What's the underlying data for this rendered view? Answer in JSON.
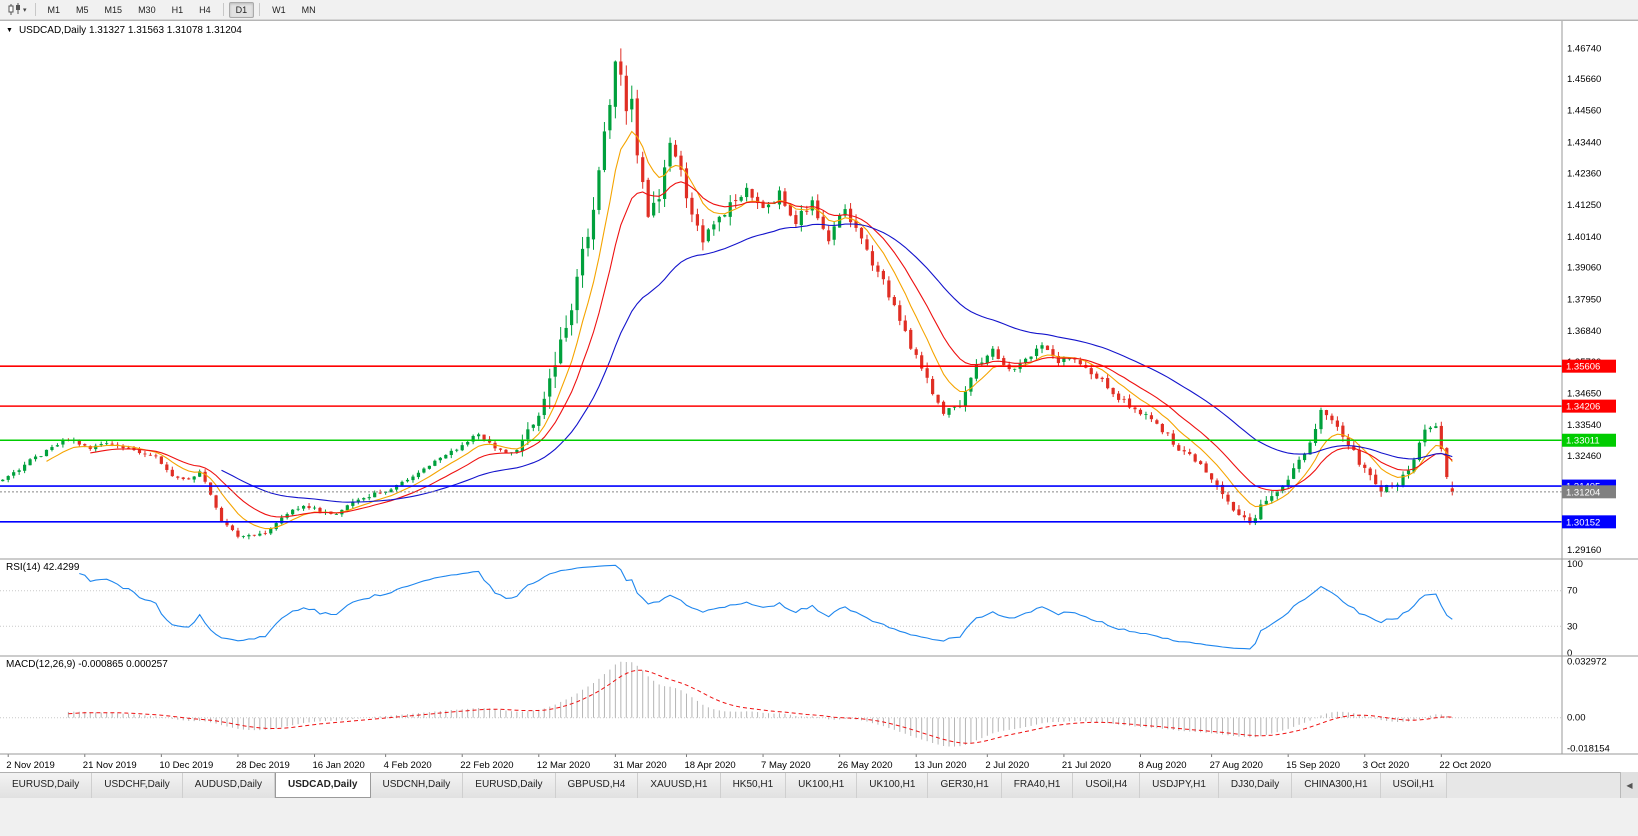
{
  "icons": {
    "symbol_dropdown": "▼",
    "dropdown_caret": "▾",
    "tab_scroll_left": "◀"
  },
  "toolbar": {
    "timeframes": [
      "M1",
      "M5",
      "M15",
      "M30",
      "H1",
      "H4",
      "D1",
      "W1",
      "MN"
    ],
    "active_timeframe": "D1"
  },
  "chart": {
    "title_text": "USDCAD,Daily 1.31327 1.31563 1.31078 1.31204"
  },
  "indicators": {
    "rsi_label": "RSI(14) 42.4299",
    "macd_label": "MACD(12,26,9) -0.000865 0.000257"
  },
  "tabs": {
    "active_index": 3,
    "items": [
      "EURUSD,Daily",
      "USDCHF,Daily",
      "AUDUSD,Daily",
      "USDCAD,Daily",
      "USDCNH,Daily",
      "EURUSD,Daily",
      "GBPUSD,H4",
      "XAUUSD,H1",
      "HK50,H1",
      "UK100,H1",
      "UK100,H1",
      "GER30,H1",
      "FRA40,H1",
      "USOil,H4",
      "USDJPY,H1",
      "DJ30,Daily",
      "CHINA300,H1",
      "USOil,H1"
    ]
  },
  "chart_data": {
    "type": "candlestick",
    "symbol": "USDCAD",
    "timeframe": "Daily",
    "last_quote": {
      "open": 1.31327,
      "high": 1.31563,
      "low": 1.31078,
      "close": 1.31204
    },
    "price_range": [
      1.2885,
      1.477
    ],
    "extremes": {
      "high": 1.4674,
      "low": 1.2951
    },
    "y_ticks": [
      1.4674,
      1.4566,
      1.4456,
      1.4344,
      1.4236,
      1.4125,
      1.4014,
      1.3906,
      1.3795,
      1.3684,
      1.3576,
      1.3465,
      1.3354,
      1.3246,
      1.3135,
      1.3024,
      1.2916
    ],
    "bars_total": 266,
    "candle_up_color": "#00a03c",
    "candle_down_color": "#e02e24",
    "price_path_anchors": [
      [
        0,
        1.316
      ],
      [
        4,
        1.3215
      ],
      [
        8,
        1.3265
      ],
      [
        12,
        1.3305
      ],
      [
        16,
        1.3275
      ],
      [
        20,
        1.3292
      ],
      [
        24,
        1.3268
      ],
      [
        28,
        1.3238
      ],
      [
        31,
        1.318
      ],
      [
        34,
        1.3168
      ],
      [
        36,
        1.3192
      ],
      [
        38,
        1.311
      ],
      [
        40,
        1.302
      ],
      [
        43,
        1.2968
      ],
      [
        46,
        1.296
      ],
      [
        49,
        1.2988
      ],
      [
        52,
        1.304
      ],
      [
        55,
        1.3078
      ],
      [
        58,
        1.3052
      ],
      [
        61,
        1.3038
      ],
      [
        64,
        1.3082
      ],
      [
        68,
        1.3112
      ],
      [
        72,
        1.3142
      ],
      [
        76,
        1.3186
      ],
      [
        80,
        1.3236
      ],
      [
        84,
        1.3288
      ],
      [
        87,
        1.3322
      ],
      [
        90,
        1.3278
      ],
      [
        93,
        1.3252
      ],
      [
        95,
        1.3292
      ],
      [
        97,
        1.3362
      ],
      [
        99,
        1.3442
      ],
      [
        101,
        1.3562
      ],
      [
        103,
        1.3702
      ],
      [
        105,
        1.3872
      ],
      [
        107,
        1.4012
      ],
      [
        109,
        1.4232
      ],
      [
        111,
        1.4482
      ],
      [
        112,
        1.46
      ],
      [
        113,
        1.456
      ],
      [
        114,
        1.4455
      ],
      [
        115,
        1.4492
      ],
      [
        116,
        1.4302
      ],
      [
        118,
        1.4062
      ],
      [
        120,
        1.4162
      ],
      [
        122,
        1.4332
      ],
      [
        124,
        1.4242
      ],
      [
        126,
        1.4072
      ],
      [
        128,
        1.3992
      ],
      [
        130,
        1.4062
      ],
      [
        133,
        1.4132
      ],
      [
        136,
        1.4192
      ],
      [
        139,
        1.4102
      ],
      [
        142,
        1.4162
      ],
      [
        145,
        1.4072
      ],
      [
        148,
        1.4132
      ],
      [
        151,
        1.4012
      ],
      [
        154,
        1.4112
      ],
      [
        157,
        1.3992
      ],
      [
        160,
        1.3892
      ],
      [
        163,
        1.3772
      ],
      [
        166,
        1.3632
      ],
      [
        169,
        1.3512
      ],
      [
        172,
        1.3392
      ],
      [
        175,
        1.3432
      ],
      [
        178,
        1.3562
      ],
      [
        181,
        1.3612
      ],
      [
        184,
        1.3542
      ],
      [
        187,
        1.3592
      ],
      [
        190,
        1.3632
      ],
      [
        193,
        1.3572
      ],
      [
        196,
        1.3592
      ],
      [
        199,
        1.3542
      ],
      [
        202,
        1.3492
      ],
      [
        205,
        1.3432
      ],
      [
        208,
        1.3402
      ],
      [
        211,
        1.3362
      ],
      [
        214,
        1.3292
      ],
      [
        217,
        1.3242
      ],
      [
        220,
        1.3192
      ],
      [
        223,
        1.3112
      ],
      [
        226,
        1.3032
      ],
      [
        228,
        1.3006
      ],
      [
        230,
        1.3072
      ],
      [
        233,
        1.3132
      ],
      [
        236,
        1.3192
      ],
      [
        239,
        1.3292
      ],
      [
        241,
        1.3402
      ],
      [
        243,
        1.3362
      ],
      [
        246,
        1.3292
      ],
      [
        249,
        1.3192
      ],
      [
        252,
        1.3126
      ],
      [
        255,
        1.3156
      ],
      [
        258,
        1.3232
      ],
      [
        260,
        1.3332
      ],
      [
        262,
        1.3352
      ],
      [
        263,
        1.3272
      ],
      [
        264,
        1.3182
      ],
      [
        265,
        1.31204
      ]
    ],
    "volatility_zones": [
      [
        0,
        0.0016
      ],
      [
        95,
        0.0038
      ],
      [
        100,
        0.0068
      ],
      [
        121,
        0.005
      ],
      [
        136,
        0.0036
      ],
      [
        161,
        0.003
      ],
      [
        181,
        0.0026
      ],
      [
        226,
        0.0028
      ]
    ],
    "moving_averages": [
      {
        "name": "fast-ma",
        "period": 8,
        "color": "#f5a400"
      },
      {
        "name": "medium-ma",
        "period": 16,
        "color": "#ee1111"
      },
      {
        "name": "slow-ma",
        "period": 40,
        "color": "#1414cc"
      }
    ],
    "horizontal_lines": [
      {
        "price": 1.35606,
        "label": "1.35606",
        "color": "#ff0000"
      },
      {
        "price": 1.34206,
        "label": "1.34206",
        "color": "#ff0000"
      },
      {
        "price": 1.33011,
        "label": "1.33011",
        "color": "#00cc00"
      },
      {
        "price": 1.31405,
        "label": "1.31405",
        "color": "#0000ff"
      },
      {
        "price": 1.30152,
        "label": "1.30152",
        "color": "#0000ff"
      }
    ],
    "current_price": {
      "value": 1.31204,
      "label": "1.31204",
      "color": "#808080"
    },
    "rsi": {
      "period": 14,
      "value": 42.4299,
      "levels": [
        100,
        70,
        30,
        0
      ],
      "color": "#1e86ee"
    },
    "macd": {
      "fast": 12,
      "slow": 26,
      "signal": 9,
      "main_value": -0.000865,
      "signal_value": 0.000257,
      "axis_labels": [
        "0.032972",
        "0.00",
        "-0.018154"
      ],
      "range": [
        -0.019,
        0.034
      ],
      "histogram_color": "#b5b5b5",
      "signal_color": "#ee1111"
    },
    "x_labels": [
      {
        "label": "2 Nov 2019",
        "bar": 1
      },
      {
        "label": "21 Nov 2019",
        "bar": 15
      },
      {
        "label": "10 Dec 2019",
        "bar": 29
      },
      {
        "label": "28 Dec 2019",
        "bar": 43
      },
      {
        "label": "16 Jan 2020",
        "bar": 57
      },
      {
        "label": "4 Feb 2020",
        "bar": 70
      },
      {
        "label": "22 Feb 2020",
        "bar": 84
      },
      {
        "label": "12 Mar 2020",
        "bar": 98
      },
      {
        "label": "31 Mar 2020",
        "bar": 112
      },
      {
        "label": "18 Apr 2020",
        "bar": 125
      },
      {
        "label": "7 May 2020",
        "bar": 139
      },
      {
        "label": "26 May 2020",
        "bar": 153
      },
      {
        "label": "13 Jun 2020",
        "bar": 167
      },
      {
        "label": "2 Jul 2020",
        "bar": 180
      },
      {
        "label": "21 Jul 2020",
        "bar": 194
      },
      {
        "label": "8 Aug 2020",
        "bar": 208
      },
      {
        "label": "27 Aug 2020",
        "bar": 221
      },
      {
        "label": "15 Sep 2020",
        "bar": 235
      },
      {
        "label": "3 Oct 2020",
        "bar": 249
      },
      {
        "label": "22 Oct 2020",
        "bar": 263
      }
    ]
  }
}
